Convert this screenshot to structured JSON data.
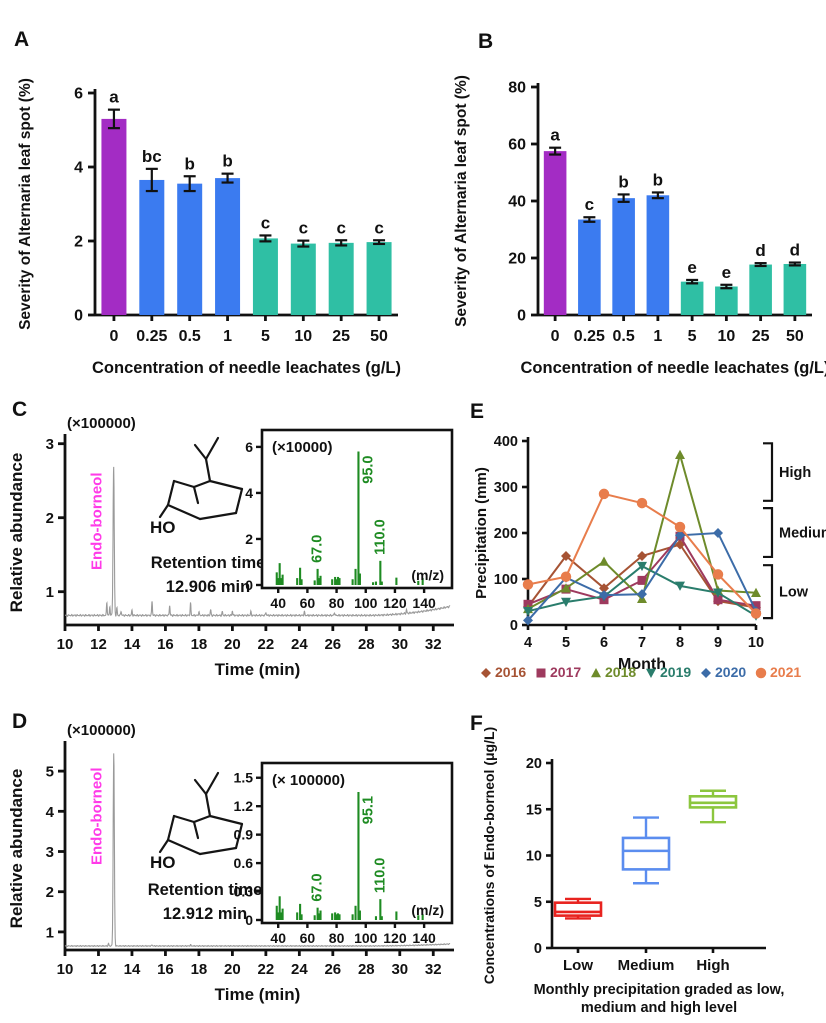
{
  "panel_labels": {
    "A": "A",
    "B": "B",
    "C": "C",
    "D": "D",
    "E": "E",
    "F": "F"
  },
  "colors": {
    "purple_bar": "#A32CC4",
    "blue_bar": "#3B7BF0",
    "teal_bar": "#2FBFA4",
    "magenta_label": "#FF3BE8",
    "spectrum_green": "#1E8B22",
    "axis": "#111111",
    "trace_gray": "#9a9a9a"
  },
  "chart_data": [
    {
      "id": "A",
      "type": "bar",
      "xlabel": "Concentration of needle leachates (g/L)",
      "ylabel": "Severity of Alternaria leaf spot (%)",
      "categories": [
        "0",
        "0.25",
        "0.5",
        "1",
        "5",
        "10",
        "25",
        "50"
      ],
      "values": [
        5.3,
        3.65,
        3.55,
        3.7,
        2.07,
        1.93,
        1.95,
        1.97
      ],
      "errors": [
        0.25,
        0.3,
        0.2,
        0.12,
        0.08,
        0.08,
        0.07,
        0.05
      ],
      "letters": [
        "a",
        "bc",
        "b",
        "b",
        "c",
        "c",
        "c",
        "c"
      ],
      "bar_colors": [
        "#A32CC4",
        "#3B7BF0",
        "#3B7BF0",
        "#3B7BF0",
        "#2FBFA4",
        "#2FBFA4",
        "#2FBFA4",
        "#2FBFA4"
      ],
      "ylim": [
        0,
        6
      ],
      "yticks": [
        0,
        2,
        4,
        6
      ]
    },
    {
      "id": "B",
      "type": "bar",
      "xlabel": "Concentration of needle leachates (g/L)",
      "ylabel": "Severity of Alternaria leaf spot  (%)",
      "categories": [
        "0",
        "0.25",
        "0.5",
        "1",
        "5",
        "10",
        "25",
        "50"
      ],
      "values": [
        57.5,
        33.5,
        41,
        42,
        11.7,
        10,
        17.7,
        17.9
      ],
      "errors": [
        1.2,
        0.8,
        1.3,
        1.0,
        0.6,
        0.6,
        0.5,
        0.5
      ],
      "letters": [
        "a",
        "c",
        "b",
        "b",
        "e",
        "e",
        "d",
        "d"
      ],
      "bar_colors": [
        "#A32CC4",
        "#3B7BF0",
        "#3B7BF0",
        "#3B7BF0",
        "#2FBFA4",
        "#2FBFA4",
        "#2FBFA4",
        "#2FBFA4"
      ],
      "ylim": [
        0,
        80
      ],
      "yticks": [
        0,
        20,
        40,
        60,
        80
      ]
    },
    {
      "id": "C",
      "type": "chromatogram",
      "xlabel": "Time (min)",
      "ylabel": "Relative abundance",
      "scale_label": "(×100000)",
      "compound_label": "Endo-borneol",
      "structure_label": "HO",
      "annotation": [
        "Retention time",
        "12.906 min"
      ],
      "xlim": [
        10,
        33
      ],
      "xticks": [
        10,
        12,
        14,
        16,
        18,
        20,
        22,
        24,
        26,
        28,
        30,
        32
      ],
      "ylim": [
        0.55,
        3.05
      ],
      "yticks": [
        1,
        2,
        3
      ],
      "baseline": 0.68,
      "main_peak": {
        "time": 12.906,
        "height": 2.7
      },
      "minor_peaks": [
        [
          12.5,
          0.18
        ],
        [
          12.68,
          0.12
        ],
        [
          13.1,
          0.1
        ],
        [
          13.35,
          0.06
        ],
        [
          14.0,
          0.07
        ],
        [
          15.2,
          0.2
        ],
        [
          16.25,
          0.14
        ],
        [
          17.5,
          0.17
        ],
        [
          18.0,
          0.05
        ],
        [
          18.7,
          0.08
        ],
        [
          19.4,
          0.05
        ],
        [
          20.0,
          0.06
        ],
        [
          21.1,
          0.05
        ],
        [
          22.0,
          0.04
        ],
        [
          24.3,
          0.05
        ],
        [
          26.1,
          0.04
        ],
        [
          30.4,
          0.05
        ]
      ],
      "tail_rise": 0.12,
      "inset": {
        "scale_label": "(×10000)",
        "mz_label": "(m/z)",
        "ylim": [
          0,
          6.3
        ],
        "yticks": [
          0,
          2,
          4,
          6
        ],
        "xlim": [
          33,
          155
        ],
        "xticks": [
          40,
          60,
          80,
          100,
          120,
          140
        ],
        "peaks": [
          [
            39,
            0.55
          ],
          [
            40,
            0.3
          ],
          [
            41,
            0.95
          ],
          [
            42,
            0.3
          ],
          [
            43,
            0.45
          ],
          [
            53,
            0.3
          ],
          [
            55,
            0.75
          ],
          [
            56,
            0.25
          ],
          [
            65,
            0.2
          ],
          [
            67,
            0.7
          ],
          [
            68,
            0.3
          ],
          [
            69,
            0.4
          ],
          [
            77,
            0.25
          ],
          [
            79,
            0.35
          ],
          [
            80,
            0.25
          ],
          [
            81,
            0.35
          ],
          [
            82,
            0.3
          ],
          [
            91,
            0.25
          ],
          [
            93,
            0.7
          ],
          [
            95,
            5.8
          ],
          [
            96,
            0.5
          ],
          [
            105,
            0.12
          ],
          [
            107,
            0.15
          ],
          [
            110,
            1.05
          ],
          [
            111,
            0.15
          ],
          [
            121,
            0.32
          ],
          [
            136,
            0.18
          ],
          [
            139,
            0.3
          ]
        ],
        "labeled_peaks": [
          {
            "text": "67.0",
            "mz": 67
          },
          {
            "text": "95.0",
            "mz": 95
          },
          {
            "text": "110.0",
            "mz": 110
          }
        ]
      }
    },
    {
      "id": "D",
      "type": "chromatogram",
      "xlabel": "Time (min)",
      "ylabel": "Relative abundance",
      "scale_label": "(×100000)",
      "compound_label": "Endo-borneol",
      "structure_label": "HO",
      "annotation": [
        "Retention time",
        "12.912 min"
      ],
      "xlim": [
        10,
        33
      ],
      "xticks": [
        10,
        12,
        14,
        16,
        18,
        20,
        22,
        24,
        26,
        28,
        30,
        32
      ],
      "ylim": [
        0.55,
        5.6
      ],
      "yticks": [
        1,
        2,
        3,
        4,
        5
      ],
      "baseline": 0.65,
      "main_peak": {
        "time": 12.912,
        "height": 5.45
      },
      "minor_peaks": [
        [
          12.6,
          0.06
        ],
        [
          15.2,
          0.03
        ],
        [
          17.5,
          0.03
        ]
      ],
      "tail_rise": 0.05,
      "inset": {
        "scale_label": "(× 100000)",
        "mz_label": "(m/z)",
        "ylim": [
          0,
          1.55
        ],
        "yticks": [
          0,
          0.3,
          0.6,
          0.9,
          1.2,
          1.5
        ],
        "xlim": [
          33,
          155
        ],
        "xticks": [
          40,
          60,
          80,
          100,
          120,
          140
        ],
        "peaks": [
          [
            39,
            0.15
          ],
          [
            40,
            0.08
          ],
          [
            41,
            0.25
          ],
          [
            42,
            0.08
          ],
          [
            43,
            0.12
          ],
          [
            53,
            0.08
          ],
          [
            55,
            0.17
          ],
          [
            56,
            0.06
          ],
          [
            65,
            0.05
          ],
          [
            67,
            0.13
          ],
          [
            68,
            0.07
          ],
          [
            69,
            0.1
          ],
          [
            77,
            0.07
          ],
          [
            79,
            0.08
          ],
          [
            80,
            0.06
          ],
          [
            81,
            0.07
          ],
          [
            82,
            0.06
          ],
          [
            91,
            0.06
          ],
          [
            93,
            0.15
          ],
          [
            95,
            1.35
          ],
          [
            96,
            0.1
          ],
          [
            107,
            0.04
          ],
          [
            110,
            0.22
          ],
          [
            111,
            0.04
          ],
          [
            121,
            0.09
          ],
          [
            136,
            0.05
          ],
          [
            139,
            0.06
          ]
        ],
        "labeled_peaks": [
          {
            "text": "67.0",
            "mz": 67
          },
          {
            "text": "95.1",
            "mz": 95
          },
          {
            "text": "110.0",
            "mz": 110
          }
        ]
      }
    },
    {
      "id": "E",
      "type": "line",
      "xlabel": "Month",
      "ylabel": "Precipitation (mm)",
      "x": [
        4,
        5,
        6,
        7,
        8,
        9,
        10
      ],
      "ylim": [
        0,
        400
      ],
      "yticks": [
        0,
        100,
        200,
        300,
        400
      ],
      "series": [
        {
          "name": "2016",
          "color": "#A65334",
          "marker": "diamond",
          "values": [
            40,
            150,
            80,
            150,
            175,
            52,
            38
          ]
        },
        {
          "name": "2017",
          "color": "#9E3A5E",
          "marker": "square",
          "values": [
            45,
            78,
            55,
            97,
            193,
            55,
            42
          ]
        },
        {
          "name": "2018",
          "color": "#6E8B2B",
          "marker": "triangle-up",
          "values": [
            35,
            80,
            138,
            57,
            370,
            75,
            70
          ]
        },
        {
          "name": "2019",
          "color": "#2A7D6C",
          "marker": "triangle-down",
          "values": [
            30,
            50,
            62,
            128,
            85,
            70,
            20
          ]
        },
        {
          "name": "2020",
          "color": "#3C6CA8",
          "marker": "diamond",
          "values": [
            10,
            103,
            65,
            67,
            195,
            200,
            30
          ]
        },
        {
          "name": "2021",
          "color": "#E87D4C",
          "marker": "circle",
          "values": [
            88,
            105,
            285,
            265,
            213,
            110,
            25
          ]
        }
      ],
      "brackets": [
        {
          "label": "High",
          "from": 270,
          "to": 395
        },
        {
          "label": "Medium",
          "from": 148,
          "to": 254
        },
        {
          "label": "Low",
          "from": 15,
          "to": 130
        }
      ]
    },
    {
      "id": "F",
      "type": "box",
      "ylabel": "Concentrations of Endo-borneol (μg/L)",
      "xlabel_lines": [
        "Monthly precipitation graded as low,",
        "medium and high level"
      ],
      "categories": [
        "Low",
        "Medium",
        "High"
      ],
      "ylim": [
        0,
        20
      ],
      "yticks": [
        0,
        5,
        10,
        15,
        20
      ],
      "boxes": [
        {
          "color": "#E8231F",
          "min": 3.2,
          "q1": 3.5,
          "median": 3.9,
          "q3": 4.9,
          "max": 5.3
        },
        {
          "color": "#5B8DEF",
          "min": 7.0,
          "q1": 8.5,
          "median": 10.5,
          "q3": 11.9,
          "max": 14.1
        },
        {
          "color": "#8CC63E",
          "min": 13.6,
          "q1": 15.2,
          "median": 15.7,
          "q3": 16.4,
          "max": 17.0
        }
      ]
    }
  ]
}
